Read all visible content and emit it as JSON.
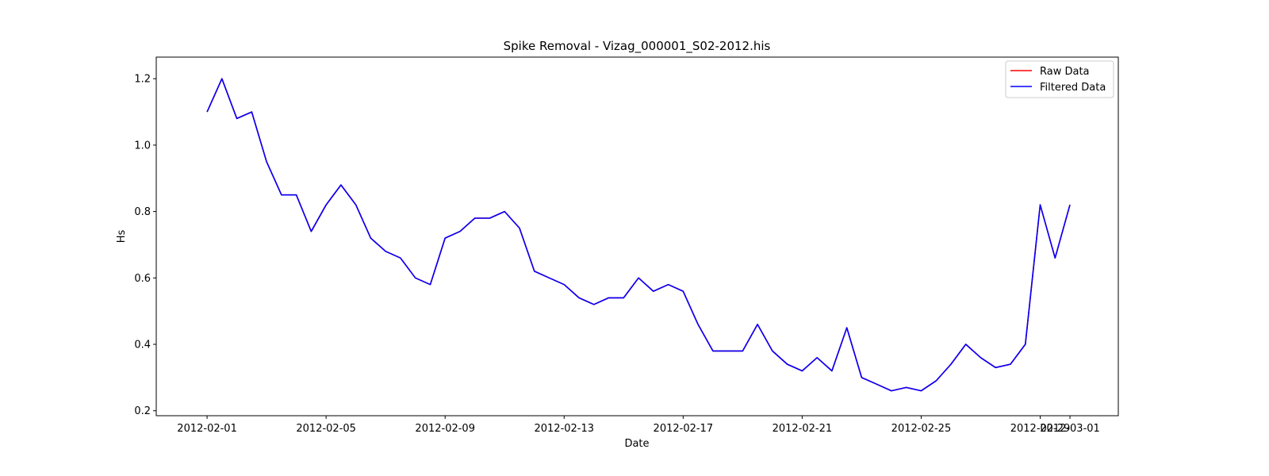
{
  "chart_data": {
    "type": "line",
    "title": "Spike Removal - Vizag_000001_S02-2012.his",
    "xlabel": "Date",
    "ylabel": "Hs",
    "xlim": [
      "2012-01-30T07:00",
      "2012-03-02T15:00"
    ],
    "ylim": [
      0.185,
      1.265
    ],
    "y_ticks": [
      0.2,
      0.4,
      0.6,
      0.8,
      1.0,
      1.2
    ],
    "y_tick_labels": [
      "0.2",
      "0.4",
      "0.6",
      "0.8",
      "1.0",
      "1.2"
    ],
    "x_ticks": [
      "2012-02-01",
      "2012-02-05",
      "2012-02-09",
      "2012-02-13",
      "2012-02-17",
      "2012-02-21",
      "2012-02-25",
      "2012-02-29",
      "2012-03-01"
    ],
    "x_tick_labels": [
      "2012-02-01",
      "2012-02-05",
      "2012-02-09",
      "2012-02-13",
      "2012-02-17",
      "2012-02-21",
      "2012-02-25",
      "2012-02-29",
      "2012-03-01"
    ],
    "grid": false,
    "legend_position": "top-right",
    "series": [
      {
        "name": "Raw Data",
        "color": "#ff0000",
        "x": [
          "2012-02-01T00:00",
          "2012-02-01T12:00",
          "2012-02-02T00:00",
          "2012-02-02T12:00",
          "2012-02-03T00:00",
          "2012-02-03T12:00",
          "2012-02-04T00:00",
          "2012-02-04T12:00",
          "2012-02-05T00:00",
          "2012-02-05T12:00",
          "2012-02-06T00:00",
          "2012-02-06T12:00",
          "2012-02-07T00:00",
          "2012-02-07T12:00",
          "2012-02-08T00:00",
          "2012-02-08T12:00",
          "2012-02-09T00:00",
          "2012-02-09T12:00",
          "2012-02-10T00:00",
          "2012-02-10T12:00",
          "2012-02-11T00:00",
          "2012-02-11T12:00",
          "2012-02-12T00:00",
          "2012-02-12T12:00",
          "2012-02-13T00:00",
          "2012-02-13T12:00",
          "2012-02-14T00:00",
          "2012-02-14T12:00",
          "2012-02-15T00:00",
          "2012-02-15T12:00",
          "2012-02-16T00:00",
          "2012-02-16T12:00",
          "2012-02-17T00:00",
          "2012-02-17T12:00",
          "2012-02-18T00:00",
          "2012-02-18T12:00",
          "2012-02-19T00:00",
          "2012-02-19T12:00",
          "2012-02-20T00:00",
          "2012-02-20T12:00",
          "2012-02-21T00:00",
          "2012-02-21T12:00",
          "2012-02-22T00:00",
          "2012-02-22T12:00",
          "2012-02-23T00:00",
          "2012-02-23T12:00",
          "2012-02-24T00:00",
          "2012-02-24T12:00",
          "2012-02-25T00:00",
          "2012-02-25T12:00",
          "2012-02-26T00:00",
          "2012-02-26T12:00",
          "2012-02-27T00:00",
          "2012-02-27T12:00",
          "2012-02-28T00:00",
          "2012-02-28T12:00",
          "2012-02-29T00:00",
          "2012-02-29T12:00",
          "2012-03-01T00:00"
        ],
        "y": [
          1.1,
          1.2,
          1.08,
          1.1,
          0.95,
          0.85,
          0.85,
          0.74,
          0.82,
          0.88,
          0.82,
          0.72,
          0.68,
          0.66,
          0.6,
          0.58,
          0.72,
          0.74,
          0.78,
          0.78,
          0.8,
          0.75,
          0.62,
          0.6,
          0.58,
          0.54,
          0.52,
          0.54,
          0.54,
          0.6,
          0.56,
          0.58,
          0.56,
          0.46,
          0.38,
          0.38,
          0.38,
          0.46,
          0.38,
          0.34,
          0.32,
          0.36,
          0.32,
          0.45,
          0.3,
          0.28,
          0.26,
          0.27,
          0.26,
          0.29,
          0.34,
          0.4,
          0.36,
          0.33,
          0.34,
          0.4,
          0.82,
          0.66,
          0.82
        ]
      },
      {
        "name": "Filtered Data",
        "color": "#0000ff",
        "x": [
          "2012-02-01T00:00",
          "2012-02-01T12:00",
          "2012-02-02T00:00",
          "2012-02-02T12:00",
          "2012-02-03T00:00",
          "2012-02-03T12:00",
          "2012-02-04T00:00",
          "2012-02-04T12:00",
          "2012-02-05T00:00",
          "2012-02-05T12:00",
          "2012-02-06T00:00",
          "2012-02-06T12:00",
          "2012-02-07T00:00",
          "2012-02-07T12:00",
          "2012-02-08T00:00",
          "2012-02-08T12:00",
          "2012-02-09T00:00",
          "2012-02-09T12:00",
          "2012-02-10T00:00",
          "2012-02-10T12:00",
          "2012-02-11T00:00",
          "2012-02-11T12:00",
          "2012-02-12T00:00",
          "2012-02-12T12:00",
          "2012-02-13T00:00",
          "2012-02-13T12:00",
          "2012-02-14T00:00",
          "2012-02-14T12:00",
          "2012-02-15T00:00",
          "2012-02-15T12:00",
          "2012-02-16T00:00",
          "2012-02-16T12:00",
          "2012-02-17T00:00",
          "2012-02-17T12:00",
          "2012-02-18T00:00",
          "2012-02-18T12:00",
          "2012-02-19T00:00",
          "2012-02-19T12:00",
          "2012-02-20T00:00",
          "2012-02-20T12:00",
          "2012-02-21T00:00",
          "2012-02-21T12:00",
          "2012-02-22T00:00",
          "2012-02-22T12:00",
          "2012-02-23T00:00",
          "2012-02-23T12:00",
          "2012-02-24T00:00",
          "2012-02-24T12:00",
          "2012-02-25T00:00",
          "2012-02-25T12:00",
          "2012-02-26T00:00",
          "2012-02-26T12:00",
          "2012-02-27T00:00",
          "2012-02-27T12:00",
          "2012-02-28T00:00",
          "2012-02-28T12:00",
          "2012-02-29T00:00",
          "2012-02-29T12:00",
          "2012-03-01T00:00"
        ],
        "y": [
          1.1,
          1.2,
          1.08,
          1.1,
          0.95,
          0.85,
          0.85,
          0.74,
          0.82,
          0.88,
          0.82,
          0.72,
          0.68,
          0.66,
          0.6,
          0.58,
          0.72,
          0.74,
          0.78,
          0.78,
          0.8,
          0.75,
          0.62,
          0.6,
          0.58,
          0.54,
          0.52,
          0.54,
          0.54,
          0.6,
          0.56,
          0.58,
          0.56,
          0.46,
          0.38,
          0.38,
          0.38,
          0.46,
          0.38,
          0.34,
          0.32,
          0.36,
          0.32,
          0.45,
          0.3,
          0.28,
          0.26,
          0.27,
          0.26,
          0.29,
          0.34,
          0.4,
          0.36,
          0.33,
          0.34,
          0.4,
          0.82,
          0.66,
          0.82
        ]
      }
    ]
  }
}
